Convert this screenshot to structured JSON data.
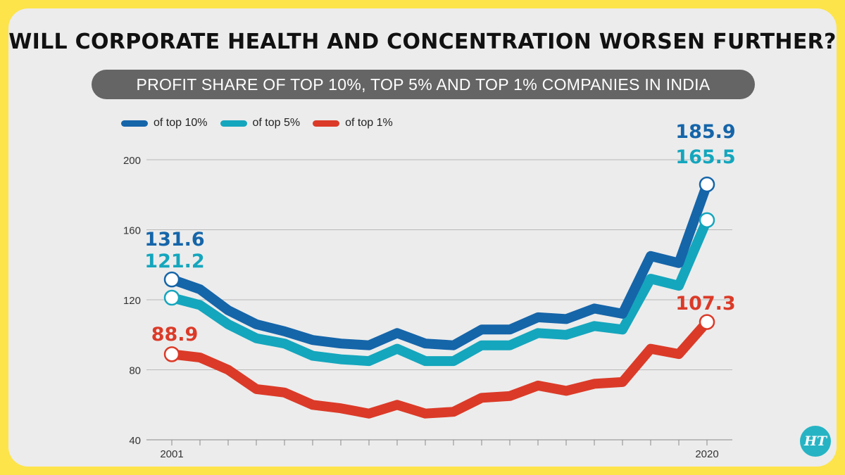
{
  "title": "WILL CORPORATE HEALTH AND CONCENTRATION WORSEN FURTHER?",
  "subtitle": "PROFIT SHARE OF TOP 10%, TOP 5% AND TOP 1% COMPANIES IN INDIA",
  "logo_text": "HT",
  "chart_data": {
    "type": "line",
    "x": [
      2001,
      2002,
      2003,
      2004,
      2005,
      2006,
      2007,
      2008,
      2009,
      2010,
      2011,
      2012,
      2013,
      2014,
      2015,
      2016,
      2017,
      2018,
      2019,
      2020
    ],
    "x_tick_labels": [
      "2001",
      "2020"
    ],
    "ylim": [
      40,
      200
    ],
    "y_ticks": [
      40,
      80,
      120,
      160,
      200
    ],
    "grid": true,
    "legend_position": "top-left",
    "series": [
      {
        "name": "of top 10%",
        "color": "#1565a9",
        "values": [
          131.6,
          126,
          114,
          106,
          102,
          97,
          95,
          94,
          101,
          95,
          94,
          103,
          103,
          110,
          109,
          115,
          112,
          145,
          141,
          185.9
        ],
        "labels": {
          "first": "131.6",
          "last": "185.9"
        }
      },
      {
        "name": "of top 5%",
        "color": "#14a6bd",
        "values": [
          121.2,
          117,
          106,
          98,
          95,
          88,
          86,
          85,
          92,
          85,
          85,
          94,
          94,
          101,
          100,
          105,
          103,
          132,
          128,
          165.5
        ],
        "labels": {
          "first": "121.2",
          "last": "165.5"
        }
      },
      {
        "name": "of top 1%",
        "color": "#db3a28",
        "values": [
          88.9,
          87,
          80,
          69,
          67,
          60,
          58,
          55,
          60,
          55,
          56,
          64,
          65,
          71,
          68,
          72,
          73,
          92,
          89,
          107.3
        ],
        "labels": {
          "first": "88.9",
          "last": "107.3"
        }
      }
    ]
  }
}
